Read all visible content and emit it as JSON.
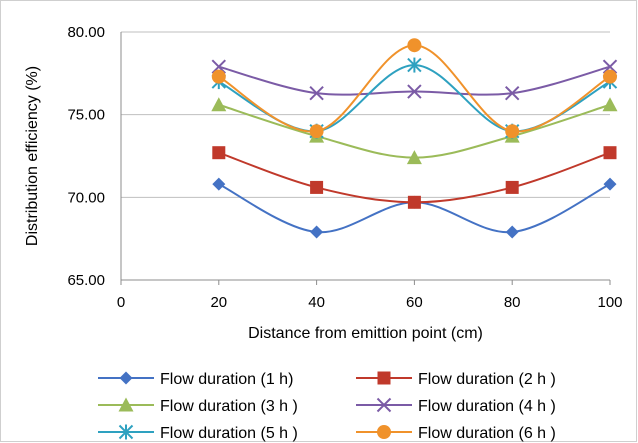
{
  "chart_data": {
    "type": "line",
    "title": "",
    "xlabel": "Distance from emittion point (cm)",
    "ylabel": "Distribution efficiency (%)",
    "xlim": [
      0,
      100
    ],
    "ylim": [
      65,
      80
    ],
    "x_ticks": [
      "0",
      "20",
      "40",
      "60",
      "80",
      "100"
    ],
    "y_ticks": [
      "65.00",
      "70.00",
      "75.00",
      "80.00"
    ],
    "grid": "horizontal",
    "legend_position": "bottom",
    "x": [
      20,
      40,
      60,
      80,
      100
    ],
    "series": [
      {
        "name": "Flow duration (1 h)",
        "color": "#4472C4",
        "marker": "diamond",
        "values": [
          70.8,
          67.9,
          69.7,
          67.9,
          70.8
        ]
      },
      {
        "name": "Flow duration (2 h )",
        "color": "#C0392B",
        "marker": "square",
        "values": [
          72.7,
          70.6,
          69.7,
          70.6,
          72.7
        ]
      },
      {
        "name": "Flow duration (3 h )",
        "color": "#9BBB59",
        "marker": "triangle",
        "values": [
          75.6,
          73.7,
          72.4,
          73.7,
          75.6
        ]
      },
      {
        "name": "Flow duration (4 h )",
        "color": "#7B5BA6",
        "marker": "x",
        "values": [
          77.9,
          76.3,
          76.4,
          76.3,
          77.9
        ]
      },
      {
        "name": "Flow duration (5 h )",
        "color": "#2EA1C0",
        "marker": "star",
        "values": [
          77.0,
          74.0,
          78.0,
          74.0,
          77.0
        ]
      },
      {
        "name": "Flow duration (6 h )",
        "color": "#F0922B",
        "marker": "circle",
        "values": [
          77.3,
          74.0,
          79.2,
          74.0,
          77.3
        ]
      }
    ]
  }
}
